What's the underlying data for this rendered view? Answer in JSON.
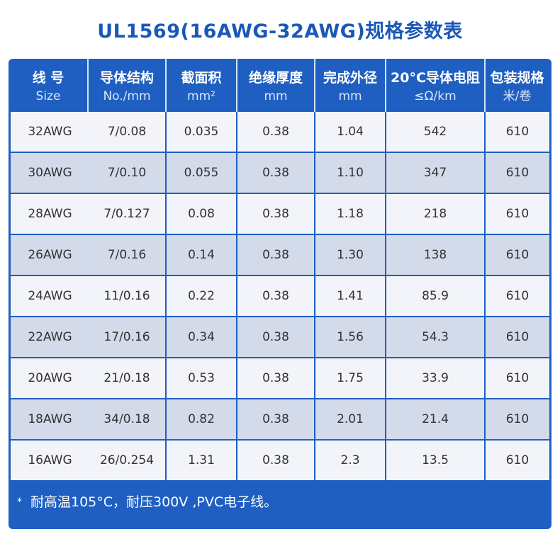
{
  "title": "UL1569(16AWG-32AWG)规格参数表",
  "headers": [
    {
      "cn": "线 号",
      "sub": "Size"
    },
    {
      "cn": "导体结构",
      "sub": "No./mm"
    },
    {
      "cn": "截面积",
      "sub": "mm²"
    },
    {
      "cn": "绝缘厚度",
      "sub": "mm"
    },
    {
      "cn": "完成外径",
      "sub": "mm"
    },
    {
      "cn": "20°C导体电阻",
      "sub": "≤Ω/km"
    },
    {
      "cn": "包装规格",
      "sub": "米/卷"
    }
  ],
  "rows": [
    [
      "32AWG",
      "7/0.08",
      "0.035",
      "0.38",
      "1.04",
      "542",
      "610"
    ],
    [
      "30AWG",
      "7/0.10",
      "0.055",
      "0.38",
      "1.10",
      "347",
      "610"
    ],
    [
      "28AWG",
      "7/0.127",
      "0.08",
      "0.38",
      "1.18",
      "218",
      "610"
    ],
    [
      "26AWG",
      "7/0.16",
      "0.14",
      "0.38",
      "1.30",
      "138",
      "610"
    ],
    [
      "24AWG",
      "11/0.16",
      "0.22",
      "0.38",
      "1.41",
      "85.9",
      "610"
    ],
    [
      "22AWG",
      "17/0.16",
      "0.34",
      "0.38",
      "1.56",
      "54.3",
      "610"
    ],
    [
      "20AWG",
      "21/0.18",
      "0.53",
      "0.38",
      "1.75",
      "33.9",
      "610"
    ],
    [
      "18AWG",
      "34/0.18",
      "0.82",
      "0.38",
      "2.01",
      "21.4",
      "610"
    ],
    [
      "16AWG",
      "26/0.254",
      "1.31",
      "0.38",
      "2.3",
      "13.5",
      "610"
    ]
  ],
  "footnote": {
    "marker": "*",
    "text": "耐高温105°C，耐压300V ,PVC电子线。"
  },
  "colors": {
    "title": "#1a58b8",
    "frame": "#1f5fc2",
    "row_light": "#f2f4f9",
    "row_shaded": "#d3daea",
    "cell_border": "#ffffff",
    "text": "#333333"
  }
}
